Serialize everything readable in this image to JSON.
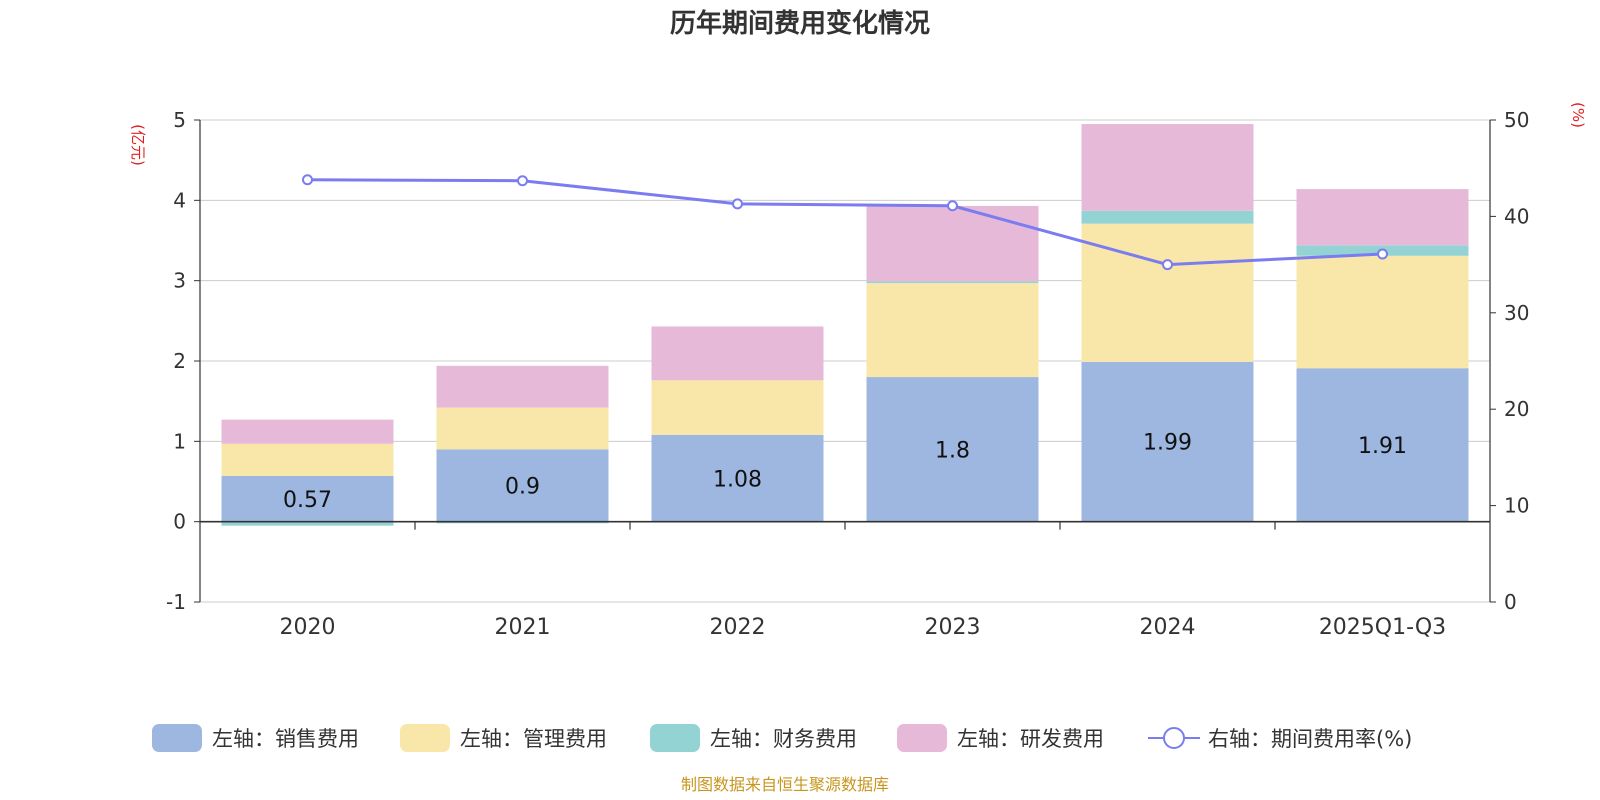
{
  "chart_data": {
    "type": "bar",
    "stacked": true,
    "title": "历年期间费用变化情况",
    "categories": [
      "2020",
      "2021",
      "2022",
      "2023",
      "2024",
      "2025Q1-Q3"
    ],
    "left_axis": {
      "unit": "(亿元)",
      "ylim": [
        -1,
        5
      ],
      "ticks": [
        "-1",
        "0",
        "1",
        "2",
        "3",
        "4",
        "5"
      ]
    },
    "right_axis": {
      "unit": "(%)",
      "ylim": [
        0,
        50
      ],
      "ticks": [
        "0",
        "10",
        "20",
        "30",
        "40",
        "50"
      ]
    },
    "series": [
      {
        "name": "左轴：销售费用",
        "axis": "left",
        "color": "#9db7e0",
        "values": [
          0.57,
          0.9,
          1.08,
          1.8,
          1.99,
          1.91
        ],
        "labels": [
          "0.57",
          "0.9",
          "1.08",
          "1.8",
          "1.99",
          "1.91"
        ]
      },
      {
        "name": "左轴：管理费用",
        "axis": "left",
        "color": "#f8e7a8",
        "values": [
          0.4,
          0.52,
          0.68,
          1.17,
          1.72,
          1.4
        ]
      },
      {
        "name": "左轴：财务费用",
        "axis": "left",
        "color": "#93d3d4",
        "values": [
          -0.05,
          -0.02,
          -0.01,
          0.02,
          0.16,
          0.13
        ]
      },
      {
        "name": "左轴：研发费用",
        "axis": "left",
        "color": "#e7b9d9",
        "values": [
          0.3,
          0.52,
          0.67,
          0.94,
          1.08,
          0.7
        ]
      },
      {
        "name": "右轴：期间费用率(%)",
        "axis": "right",
        "type": "line",
        "color": "#7a7cf0",
        "values": [
          43.8,
          43.7,
          41.3,
          41.1,
          35.0,
          36.1
        ]
      }
    ]
  },
  "source_note": "制图数据来自恒生聚源数据库"
}
